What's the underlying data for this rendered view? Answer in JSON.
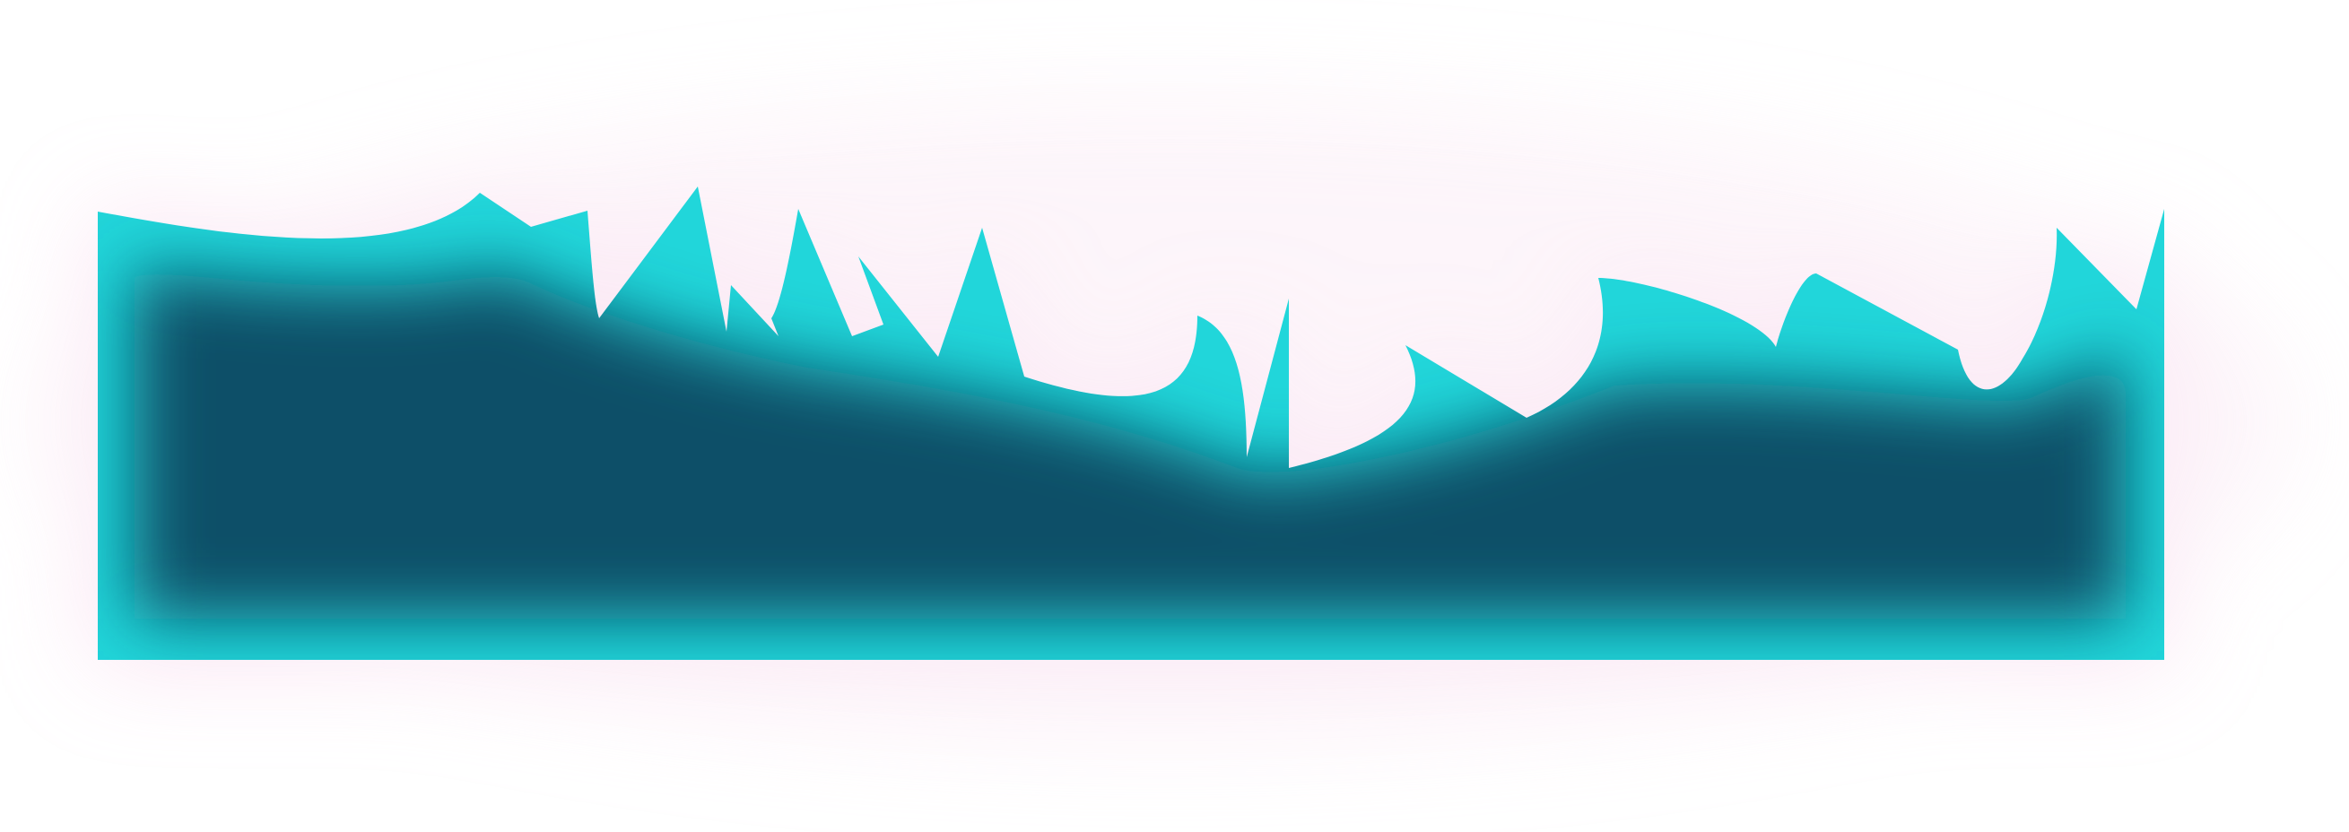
{
  "scene": {
    "description_free": true
  },
  "colors": {
    "background": "#ffffff",
    "glow": "#f6c9e6",
    "edge": "#21d6da",
    "fill": "#0b4f68"
  }
}
